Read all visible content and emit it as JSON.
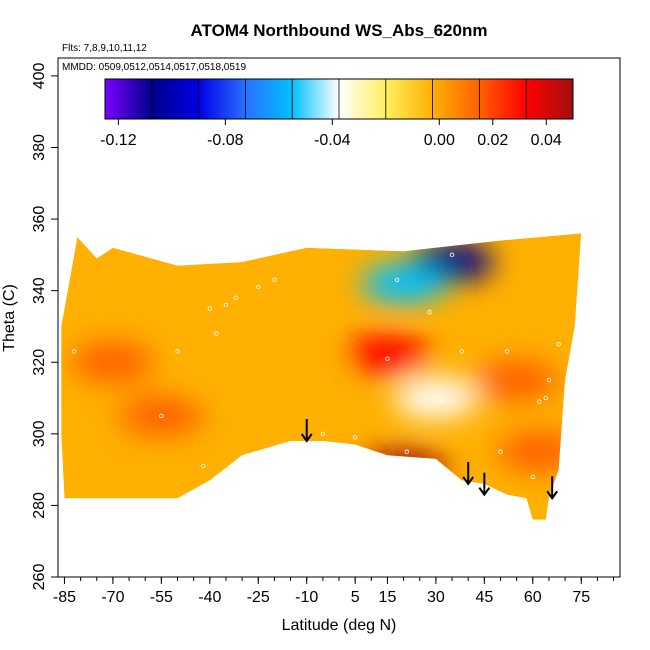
{
  "chart_data": {
    "type": "heatmap",
    "title": "ATOM4 Northbound WS_Abs_620nm",
    "annotations": {
      "flights": "Flts: 7,8,9,10,11,12",
      "dates": "MMDD: 0509,0512,0514,0517,0518,0519"
    },
    "xlabel": "Latitude (deg N)",
    "ylabel": "Theta (C)",
    "xlim": [
      -87,
      87
    ],
    "ylim": [
      260,
      405
    ],
    "x_ticks": [
      "-85",
      "-70",
      "-55",
      "-40",
      "-25",
      "-10",
      "5",
      "15",
      "30",
      "45",
      "60",
      "75"
    ],
    "x_tick_values": [
      -85,
      -70,
      -55,
      -40,
      -25,
      -10,
      5,
      15,
      30,
      45,
      60,
      75
    ],
    "y_ticks": [
      "260",
      "280",
      "300",
      "320",
      "340",
      "360",
      "380",
      "400"
    ],
    "y_tick_values": [
      260,
      280,
      300,
      320,
      340,
      360,
      380,
      400
    ],
    "colorbar": {
      "tick_labels": [
        "-0.12",
        "-0.08",
        "-0.04",
        "0.00",
        "0.02",
        "0.04"
      ],
      "tick_values": [
        -0.12,
        -0.08,
        -0.04,
        0.0,
        0.02,
        0.04
      ],
      "range": [
        -0.125,
        0.05
      ],
      "colors": [
        "#7a00ff",
        "#00008c",
        "#0000e6",
        "#2a6fff",
        "#00c0ff",
        "#ffffff",
        "#ffef60",
        "#ffb000",
        "#ff6000",
        "#ff0000",
        "#a01010"
      ]
    },
    "domain_outline": [
      [
        -81,
        355
      ],
      [
        -75,
        349
      ],
      [
        -70,
        352
      ],
      [
        -50,
        347
      ],
      [
        -30,
        348
      ],
      [
        -10,
        352
      ],
      [
        20,
        351
      ],
      [
        50,
        354
      ],
      [
        75,
        356
      ],
      [
        73,
        330
      ],
      [
        70,
        315
      ],
      [
        68,
        290
      ],
      [
        65,
        282
      ],
      [
        64,
        276
      ],
      [
        60,
        276
      ],
      [
        58,
        282
      ],
      [
        52,
        283
      ],
      [
        45,
        286
      ],
      [
        38,
        287
      ],
      [
        30,
        293
      ],
      [
        15,
        294
      ],
      [
        5,
        297
      ],
      [
        -5,
        298
      ],
      [
        -15,
        298
      ],
      [
        -30,
        294
      ],
      [
        -40,
        287
      ],
      [
        -50,
        282
      ],
      [
        -60,
        282
      ],
      [
        -85,
        282
      ],
      [
        -86,
        300
      ],
      [
        -86,
        330
      ]
    ],
    "features": [
      {
        "lat": -55,
        "theta": 305,
        "value": 0.012
      },
      {
        "lat": -70,
        "theta": 320,
        "value": 0.008
      },
      {
        "lat": -40,
        "theta": 320,
        "value": 0.004
      },
      {
        "lat": -20,
        "theta": 330,
        "value": 0.002
      },
      {
        "lat": -10,
        "theta": 315,
        "value": -0.004
      },
      {
        "lat": 15,
        "theta": 322,
        "value": 0.04
      },
      {
        "lat": 20,
        "theta": 290,
        "value": 0.045
      },
      {
        "lat": 30,
        "theta": 310,
        "value": -0.04
      },
      {
        "lat": 35,
        "theta": 348,
        "value": -0.1
      },
      {
        "lat": 20,
        "theta": 342,
        "value": -0.06
      },
      {
        "lat": 55,
        "theta": 315,
        "value": 0.02
      },
      {
        "lat": 62,
        "theta": 295,
        "value": 0.02
      }
    ],
    "sample_points": [
      [
        -82,
        323
      ],
      [
        -55,
        305
      ],
      [
        -50,
        323
      ],
      [
        -42,
        291
      ],
      [
        -40,
        335
      ],
      [
        -38,
        328
      ],
      [
        -35,
        336
      ],
      [
        -32,
        338
      ],
      [
        -25,
        341
      ],
      [
        -20,
        343
      ],
      [
        -5,
        300
      ],
      [
        5,
        299
      ],
      [
        15,
        321
      ],
      [
        18,
        343
      ],
      [
        21,
        295
      ],
      [
        28,
        334
      ],
      [
        32,
        309
      ],
      [
        38,
        323
      ],
      [
        35,
        350
      ],
      [
        50,
        295
      ],
      [
        52,
        323
      ],
      [
        60,
        288
      ],
      [
        62,
        309
      ],
      [
        64,
        310
      ],
      [
        65,
        315
      ],
      [
        68,
        325
      ]
    ],
    "arrows": [
      {
        "lat": -10,
        "theta": 298
      },
      {
        "lat": 40,
        "theta": 286
      },
      {
        "lat": 45,
        "theta": 283
      },
      {
        "lat": 66,
        "theta": 282
      }
    ]
  }
}
